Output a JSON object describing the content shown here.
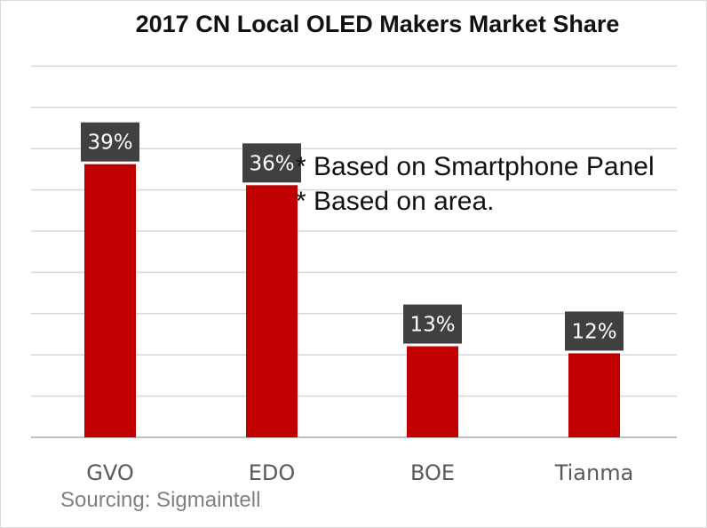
{
  "chart_data": {
    "type": "bar",
    "title": "2017 CN Local OLED Makers Market Share",
    "categories": [
      "GVO",
      "EDO",
      "BOE",
      "Tianma"
    ],
    "values": [
      39,
      36,
      13,
      12
    ],
    "data_labels": [
      "39%",
      "36%",
      "13%",
      "12%"
    ],
    "ylim": [
      0,
      45
    ],
    "grid": true,
    "bar_color": "#C00000",
    "label_box_color": "#404040",
    "annotations": [
      "* Based on Smartphone Panel",
      "* Based on area."
    ],
    "source": "Sourcing:  Sigmaintell"
  }
}
